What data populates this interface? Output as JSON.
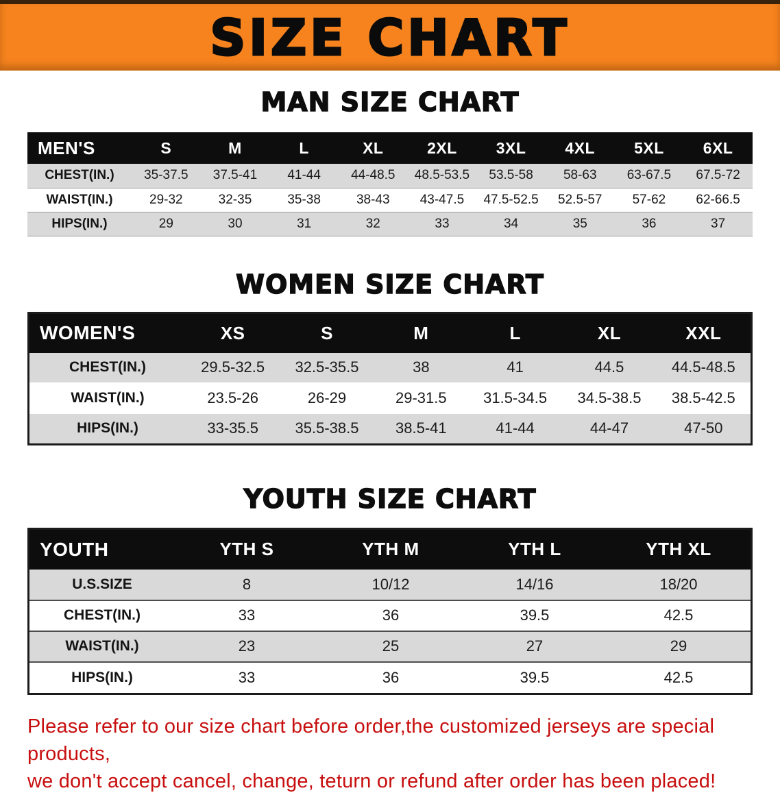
{
  "colors": {
    "banner_orange": "#f6831e",
    "table_header_black": "#0d0d0d",
    "row_gray": "#d9d9d9",
    "disclaimer_red": "#c80f0f"
  },
  "banner": {
    "title": "SIZE CHART"
  },
  "sections": [
    {
      "heading": "MAN SIZE CHART",
      "table": {
        "header": [
          "MEN'S",
          "S",
          "M",
          "L",
          "XL",
          "2XL",
          "3XL",
          "4XL",
          "5XL",
          "6XL"
        ],
        "rows": [
          [
            "CHEST(IN.)",
            "35-37.5",
            "37.5-41",
            "41-44",
            "44-48.5",
            "48.5-53.5",
            "53.5-58",
            "58-63",
            "63-67.5",
            "67.5-72"
          ],
          [
            "WAIST(IN.)",
            "29-32",
            "32-35",
            "35-38",
            "38-43",
            "43-47.5",
            "47.5-52.5",
            "52.5-57",
            "57-62",
            "62-66.5"
          ],
          [
            "HIPS(IN.)",
            "29",
            "30",
            "31",
            "32",
            "33",
            "34",
            "35",
            "36",
            "37"
          ]
        ]
      }
    },
    {
      "heading": "WOMEN SIZE CHART",
      "table": {
        "header": [
          "WOMEN'S",
          "XS",
          "S",
          "M",
          "L",
          "XL",
          "XXL"
        ],
        "rows": [
          [
            "CHEST(IN.)",
            "29.5-32.5",
            "32.5-35.5",
            "38",
            "41",
            "44.5",
            "44.5-48.5"
          ],
          [
            "WAIST(IN.)",
            "23.5-26",
            "26-29",
            "29-31.5",
            "31.5-34.5",
            "34.5-38.5",
            "38.5-42.5"
          ],
          [
            "HIPS(IN.)",
            "33-35.5",
            "35.5-38.5",
            "38.5-41",
            "41-44",
            "44-47",
            "47-50"
          ]
        ]
      }
    },
    {
      "heading": "YOUTH SIZE CHART",
      "table": {
        "header": [
          "YOUTH",
          "YTH S",
          "YTH M",
          "YTH L",
          "YTH XL"
        ],
        "rows": [
          [
            "U.S.SIZE",
            "8",
            "10/12",
            "14/16",
            "18/20"
          ],
          [
            "CHEST(IN.)",
            "33",
            "36",
            "39.5",
            "42.5"
          ],
          [
            "WAIST(IN.)",
            "23",
            "25",
            "27",
            "29"
          ],
          [
            "HIPS(IN.)",
            "33",
            "36",
            "39.5",
            "42.5"
          ]
        ]
      }
    }
  ],
  "disclaimer": {
    "lines": [
      "Please refer to our size chart before order,the customized jerseys are special products,",
      "we don't accept cancel, change, teturn or refund after order has been placed!"
    ]
  }
}
